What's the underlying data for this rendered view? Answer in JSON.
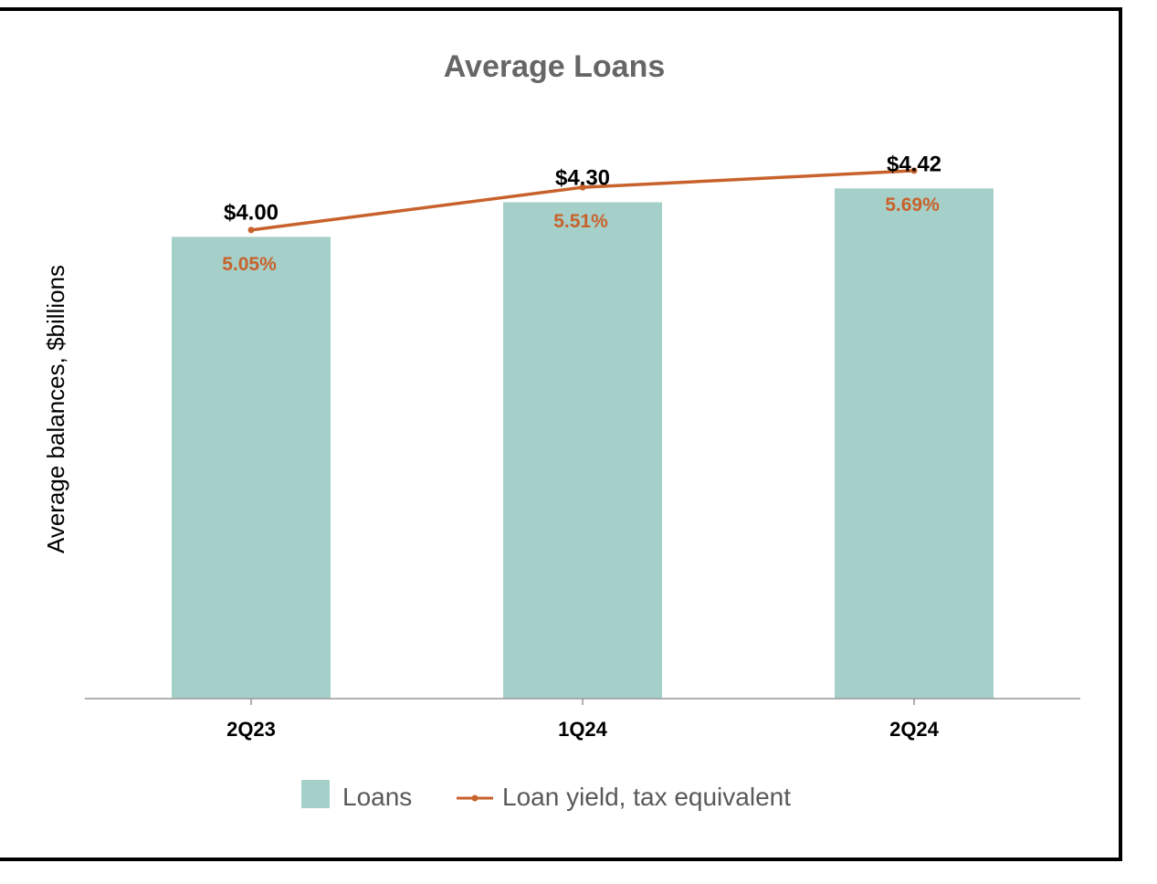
{
  "chart_data": {
    "type": "bar",
    "title": "Average Loans",
    "ylabel": "Average balances, $billions",
    "xlabel": "",
    "categories": [
      "2Q23",
      "1Q24",
      "2Q24"
    ],
    "ylim": [
      0,
      5.0
    ],
    "y2lim": [
      0,
      6.22
    ],
    "grid": false,
    "legend_position": "bottom-center",
    "series": [
      {
        "name": "Loans",
        "type": "bar",
        "axis": "left",
        "values": [
          4.0,
          4.3,
          4.42
        ],
        "labels": [
          "$4.00",
          "$4.30",
          "$4.42"
        ]
      },
      {
        "name": "Loan yield, tax equivalent",
        "type": "line",
        "axis": "right",
        "values": [
          5.05,
          5.51,
          5.69
        ],
        "labels": [
          "5.05%",
          "5.51%",
          "5.69%"
        ]
      }
    ],
    "colors": {
      "bar": "#a5d0c9",
      "line": "#c8622c",
      "title": "#666666",
      "text": "#000000",
      "axis": "#999999",
      "legend_text": "#595959"
    }
  }
}
